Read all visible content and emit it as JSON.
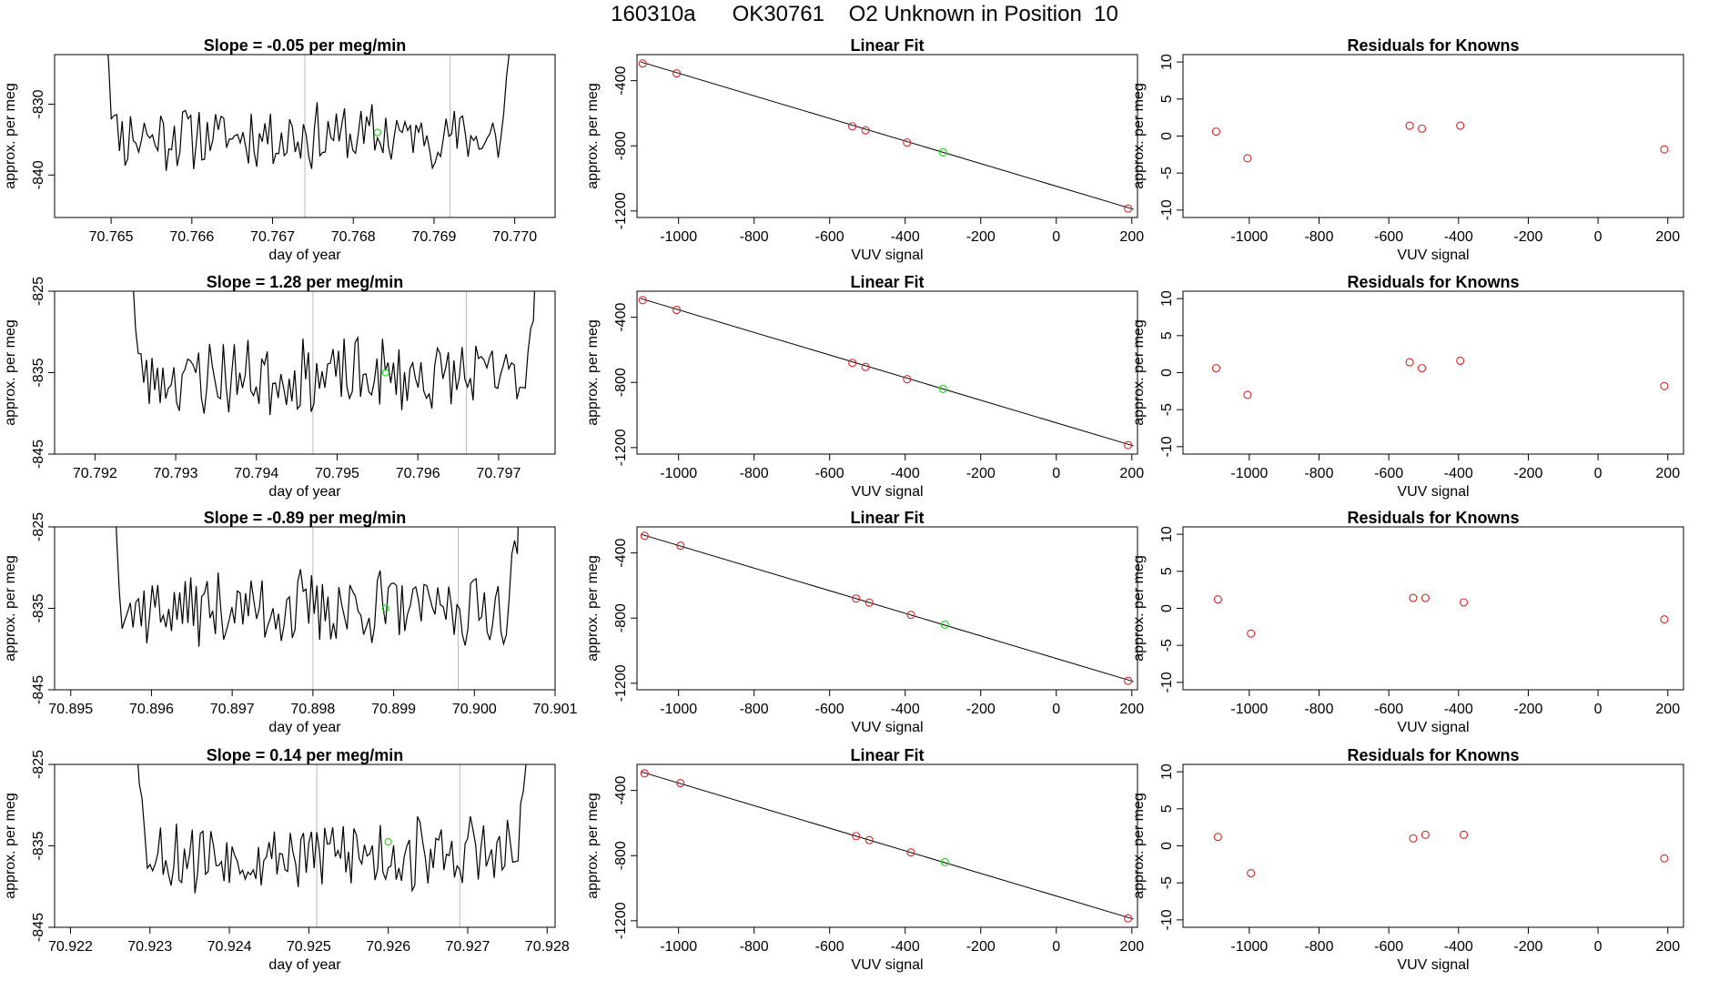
{
  "page_title": "160310a      OK30761    O2 Unknown in Position  10",
  "colors": {
    "line": "#000000",
    "known_point": "#d62728",
    "unknown_point": "#22dd22",
    "marker_line": "#bbbbbb"
  },
  "chart_data": [
    {
      "type": "line",
      "row": 1,
      "panel": "time-series",
      "title": "Slope =  -0.05  per meg/min",
      "xlabel": "day of year",
      "ylabel": "approx. per meg",
      "xlim": [
        70.7643,
        70.7705
      ],
      "ylim": [
        -846,
        -823
      ],
      "xticks": [
        {
          "v": 70.765,
          "label": "70.765"
        },
        {
          "v": 70.766,
          "label": "70.766"
        },
        {
          "v": 70.767,
          "label": "70.767"
        },
        {
          "v": 70.768,
          "label": "70.768"
        },
        {
          "v": 70.769,
          "label": "70.769"
        },
        {
          "v": 70.77,
          "label": "70.770"
        }
      ],
      "yticks": [
        {
          "v": -830,
          "label": "-830"
        },
        {
          "v": -840,
          "label": "-840"
        }
      ],
      "x_start": 70.7649,
      "x_end": 70.77,
      "y_mean": -834.5,
      "amplitude": 4,
      "seed": 11,
      "vlines": [
        70.7674,
        70.7692
      ],
      "unknown_point": {
        "x": 70.7683,
        "y": -834.0
      }
    },
    {
      "type": "scatter",
      "row": 1,
      "panel": "linear-fit",
      "title": "Linear Fit",
      "xlabel": "VUV signal",
      "ylabel": "approx. per meg",
      "xlim": [
        -1110,
        215
      ],
      "ylim": [
        -1240,
        -240
      ],
      "xticks": [
        {
          "v": -1000,
          "label": "-1000"
        },
        {
          "v": -800,
          "label": "-800"
        },
        {
          "v": -600,
          "label": "-600"
        },
        {
          "v": -400,
          "label": "-400"
        },
        {
          "v": -200,
          "label": "-200"
        },
        {
          "v": 0,
          "label": "0"
        },
        {
          "v": 200,
          "label": "200"
        }
      ],
      "yticks": [
        {
          "v": -400,
          "label": "-400"
        },
        {
          "v": -800,
          "label": "-800"
        },
        {
          "v": -1200,
          "label": "-1200"
        }
      ],
      "fit_line": [
        [
          -1100,
          -285
        ],
        [
          205,
          -1190
        ]
      ],
      "known_points": [
        [
          -1095,
          -295
        ],
        [
          -1005,
          -355
        ],
        [
          -540,
          -680
        ],
        [
          -505,
          -705
        ],
        [
          -395,
          -780
        ],
        [
          190,
          -1185
        ]
      ],
      "unknown_point": [
        -300,
        -840
      ]
    },
    {
      "type": "scatter",
      "row": 1,
      "panel": "residuals",
      "title": "Residuals for Knowns",
      "xlabel": "VUV signal",
      "ylabel": "approx. per meg",
      "xlim": [
        -1190,
        245
      ],
      "ylim": [
        -11,
        11
      ],
      "xticks": [
        {
          "v": -1000,
          "label": "-1000"
        },
        {
          "v": -800,
          "label": "-800"
        },
        {
          "v": -600,
          "label": "-600"
        },
        {
          "v": -400,
          "label": "-400"
        },
        {
          "v": -200,
          "label": "-200"
        },
        {
          "v": 0,
          "label": "0"
        },
        {
          "v": 200,
          "label": "200"
        }
      ],
      "yticks": [
        {
          "v": 10,
          "label": "10"
        },
        {
          "v": 5,
          "label": "5"
        },
        {
          "v": 0,
          "label": "0"
        },
        {
          "v": -5,
          "label": "-5"
        },
        {
          "v": -10,
          "label": "-10"
        }
      ],
      "known_points": [
        [
          -1095,
          0.6
        ],
        [
          -1005,
          -3.0
        ],
        [
          -540,
          1.4
        ],
        [
          -505,
          1.0
        ],
        [
          -395,
          1.4
        ],
        [
          190,
          -1.8
        ]
      ]
    },
    {
      "type": "line",
      "row": 2,
      "panel": "time-series",
      "title": "Slope =  1.28  per meg/min",
      "xlabel": "day of year",
      "ylabel": "approx. per meg",
      "xlim": [
        70.7915,
        70.7977
      ],
      "ylim": [
        -845,
        -825
      ],
      "xticks": [
        {
          "v": 70.792,
          "label": "70.792"
        },
        {
          "v": 70.793,
          "label": "70.793"
        },
        {
          "v": 70.794,
          "label": "70.794"
        },
        {
          "v": 70.795,
          "label": "70.795"
        },
        {
          "v": 70.796,
          "label": "70.796"
        },
        {
          "v": 70.797,
          "label": "70.797"
        }
      ],
      "yticks": [
        {
          "v": -825,
          "label": "-825"
        },
        {
          "v": -835,
          "label": "-835"
        },
        {
          "v": -845,
          "label": "-845"
        }
      ],
      "x_start": 70.7924,
      "x_end": 70.7975,
      "y_mean": -835.5,
      "amplitude": 4,
      "seed": 23,
      "vlines": [
        70.7947,
        70.7966
      ],
      "unknown_point": {
        "x": 70.7956,
        "y": -835.0
      }
    },
    {
      "type": "scatter",
      "row": 2,
      "panel": "linear-fit",
      "title": "Linear Fit",
      "xlabel": "VUV signal",
      "ylabel": "approx. per meg",
      "xlim": [
        -1110,
        215
      ],
      "ylim": [
        -1240,
        -240
      ],
      "xticks": [
        {
          "v": -1000,
          "label": "-1000"
        },
        {
          "v": -800,
          "label": "-800"
        },
        {
          "v": -600,
          "label": "-600"
        },
        {
          "v": -400,
          "label": "-400"
        },
        {
          "v": -200,
          "label": "-200"
        },
        {
          "v": 0,
          "label": "0"
        },
        {
          "v": 200,
          "label": "200"
        }
      ],
      "yticks": [
        {
          "v": -400,
          "label": "-400"
        },
        {
          "v": -800,
          "label": "-800"
        },
        {
          "v": -1200,
          "label": "-1200"
        }
      ],
      "fit_line": [
        [
          -1100,
          -285
        ],
        [
          205,
          -1190
        ]
      ],
      "known_points": [
        [
          -1095,
          -295
        ],
        [
          -1005,
          -355
        ],
        [
          -540,
          -680
        ],
        [
          -505,
          -705
        ],
        [
          -395,
          -780
        ],
        [
          190,
          -1185
        ]
      ],
      "unknown_point": [
        -300,
        -840
      ]
    },
    {
      "type": "scatter",
      "row": 2,
      "panel": "residuals",
      "title": "Residuals for Knowns",
      "xlabel": "VUV signal",
      "ylabel": "approx. per meg",
      "xlim": [
        -1190,
        245
      ],
      "ylim": [
        -11,
        11
      ],
      "xticks": [
        {
          "v": -1000,
          "label": "-1000"
        },
        {
          "v": -800,
          "label": "-800"
        },
        {
          "v": -600,
          "label": "-600"
        },
        {
          "v": -400,
          "label": "-400"
        },
        {
          "v": -200,
          "label": "-200"
        },
        {
          "v": 0,
          "label": "0"
        },
        {
          "v": 200,
          "label": "200"
        }
      ],
      "yticks": [
        {
          "v": 10,
          "label": "10"
        },
        {
          "v": 5,
          "label": "5"
        },
        {
          "v": 0,
          "label": "0"
        },
        {
          "v": -5,
          "label": "-5"
        },
        {
          "v": -10,
          "label": "-10"
        }
      ],
      "known_points": [
        [
          -1095,
          0.6
        ],
        [
          -1005,
          -3.0
        ],
        [
          -540,
          1.4
        ],
        [
          -505,
          0.6
        ],
        [
          -395,
          1.6
        ],
        [
          190,
          -1.8
        ]
      ]
    },
    {
      "type": "line",
      "row": 3,
      "panel": "time-series",
      "title": "Slope =  -0.89  per meg/min",
      "xlabel": "day of year",
      "ylabel": "approx. per meg",
      "xlim": [
        70.8948,
        70.901
      ],
      "ylim": [
        -845,
        -825
      ],
      "xticks": [
        {
          "v": 70.895,
          "label": "70.895"
        },
        {
          "v": 70.896,
          "label": "70.896"
        },
        {
          "v": 70.897,
          "label": "70.897"
        },
        {
          "v": 70.898,
          "label": "70.898"
        },
        {
          "v": 70.899,
          "label": "70.899"
        },
        {
          "v": 70.9,
          "label": "70.900"
        },
        {
          "v": 70.901,
          "label": "70.901"
        }
      ],
      "yticks": [
        {
          "v": -825,
          "label": "-825"
        },
        {
          "v": -835,
          "label": "-835"
        },
        {
          "v": -845,
          "label": "-845"
        }
      ],
      "x_start": 70.8955,
      "x_end": 70.9006,
      "y_mean": -835.0,
      "amplitude": 4,
      "seed": 37,
      "vlines": [
        70.898,
        70.8998
      ],
      "unknown_point": {
        "x": 70.8989,
        "y": -835.0
      }
    },
    {
      "type": "scatter",
      "row": 3,
      "panel": "linear-fit",
      "title": "Linear Fit",
      "xlabel": "VUV signal",
      "ylabel": "approx. per meg",
      "xlim": [
        -1110,
        215
      ],
      "ylim": [
        -1240,
        -240
      ],
      "xticks": [
        {
          "v": -1000,
          "label": "-1000"
        },
        {
          "v": -800,
          "label": "-800"
        },
        {
          "v": -600,
          "label": "-600"
        },
        {
          "v": -400,
          "label": "-400"
        },
        {
          "v": -200,
          "label": "-200"
        },
        {
          "v": 0,
          "label": "0"
        },
        {
          "v": 200,
          "label": "200"
        }
      ],
      "yticks": [
        {
          "v": -400,
          "label": "-400"
        },
        {
          "v": -800,
          "label": "-800"
        },
        {
          "v": -1200,
          "label": "-1200"
        }
      ],
      "fit_line": [
        [
          -1100,
          -285
        ],
        [
          205,
          -1190
        ]
      ],
      "known_points": [
        [
          -1090,
          -295
        ],
        [
          -995,
          -355
        ],
        [
          -530,
          -680
        ],
        [
          -495,
          -705
        ],
        [
          -385,
          -780
        ],
        [
          190,
          -1185
        ]
      ],
      "unknown_point": [
        -295,
        -840
      ]
    },
    {
      "type": "scatter",
      "row": 3,
      "panel": "residuals",
      "title": "Residuals for Knowns",
      "xlabel": "VUV signal",
      "ylabel": "approx. per meg",
      "xlim": [
        -1190,
        245
      ],
      "ylim": [
        -11,
        11
      ],
      "xticks": [
        {
          "v": -1000,
          "label": "-1000"
        },
        {
          "v": -800,
          "label": "-800"
        },
        {
          "v": -600,
          "label": "-600"
        },
        {
          "v": -400,
          "label": "-400"
        },
        {
          "v": -200,
          "label": "-200"
        },
        {
          "v": 0,
          "label": "0"
        },
        {
          "v": 200,
          "label": "200"
        }
      ],
      "yticks": [
        {
          "v": 10,
          "label": "10"
        },
        {
          "v": 5,
          "label": "5"
        },
        {
          "v": 0,
          "label": "0"
        },
        {
          "v": -5,
          "label": "-5"
        },
        {
          "v": -10,
          "label": "-10"
        }
      ],
      "known_points": [
        [
          -1090,
          1.2
        ],
        [
          -995,
          -3.4
        ],
        [
          -530,
          1.4
        ],
        [
          -495,
          1.4
        ],
        [
          -385,
          0.8
        ],
        [
          190,
          -1.5
        ]
      ]
    },
    {
      "type": "line",
      "row": 4,
      "panel": "time-series",
      "title": "Slope =  0.14  per meg/min",
      "xlabel": "day of year",
      "ylabel": "approx. per meg",
      "xlim": [
        70.9218,
        70.9281
      ],
      "ylim": [
        -845,
        -825
      ],
      "xticks": [
        {
          "v": 70.922,
          "label": "70.922"
        },
        {
          "v": 70.923,
          "label": "70.923"
        },
        {
          "v": 70.924,
          "label": "70.924"
        },
        {
          "v": 70.925,
          "label": "70.925"
        },
        {
          "v": 70.926,
          "label": "70.926"
        },
        {
          "v": 70.927,
          "label": "70.927"
        },
        {
          "v": 70.928,
          "label": "70.928"
        }
      ],
      "yticks": [
        {
          "v": -825,
          "label": "-825"
        },
        {
          "v": -835,
          "label": "-835"
        },
        {
          "v": -845,
          "label": "-845"
        }
      ],
      "x_start": 70.9228,
      "x_end": 70.9278,
      "y_mean": -836.0,
      "amplitude": 4,
      "seed": 53,
      "vlines": [
        70.9251,
        70.9269
      ],
      "unknown_point": {
        "x": 70.926,
        "y": -834.5
      }
    },
    {
      "type": "scatter",
      "row": 4,
      "panel": "linear-fit",
      "title": "Linear Fit",
      "xlabel": "VUV signal",
      "ylabel": "approx. per meg",
      "xlim": [
        -1110,
        215
      ],
      "ylim": [
        -1240,
        -240
      ],
      "xticks": [
        {
          "v": -1000,
          "label": "-1000"
        },
        {
          "v": -800,
          "label": "-800"
        },
        {
          "v": -600,
          "label": "-600"
        },
        {
          "v": -400,
          "label": "-400"
        },
        {
          "v": -200,
          "label": "-200"
        },
        {
          "v": 0,
          "label": "0"
        },
        {
          "v": 200,
          "label": "200"
        }
      ],
      "yticks": [
        {
          "v": -400,
          "label": "-400"
        },
        {
          "v": -800,
          "label": "-800"
        },
        {
          "v": -1200,
          "label": "-1200"
        }
      ],
      "fit_line": [
        [
          -1100,
          -285
        ],
        [
          205,
          -1190
        ]
      ],
      "known_points": [
        [
          -1090,
          -295
        ],
        [
          -995,
          -355
        ],
        [
          -530,
          -680
        ],
        [
          -495,
          -705
        ],
        [
          -385,
          -780
        ],
        [
          190,
          -1185
        ]
      ],
      "unknown_point": [
        -295,
        -840
      ]
    },
    {
      "type": "scatter",
      "row": 4,
      "panel": "residuals",
      "title": "Residuals for Knowns",
      "xlabel": "VUV signal",
      "ylabel": "approx. per meg",
      "xlim": [
        -1190,
        245
      ],
      "ylim": [
        -11,
        11
      ],
      "xticks": [
        {
          "v": -1000,
          "label": "-1000"
        },
        {
          "v": -800,
          "label": "-800"
        },
        {
          "v": -600,
          "label": "-600"
        },
        {
          "v": -400,
          "label": "-400"
        },
        {
          "v": -200,
          "label": "-200"
        },
        {
          "v": 0,
          "label": "0"
        },
        {
          "v": 200,
          "label": "200"
        }
      ],
      "yticks": [
        {
          "v": 10,
          "label": "10"
        },
        {
          "v": 5,
          "label": "5"
        },
        {
          "v": 0,
          "label": "0"
        },
        {
          "v": -5,
          "label": "-5"
        },
        {
          "v": -10,
          "label": "-10"
        }
      ],
      "known_points": [
        [
          -1090,
          1.2
        ],
        [
          -995,
          -3.7
        ],
        [
          -530,
          1.0
        ],
        [
          -495,
          1.5
        ],
        [
          -385,
          1.5
        ],
        [
          190,
          -1.7
        ]
      ]
    }
  ]
}
